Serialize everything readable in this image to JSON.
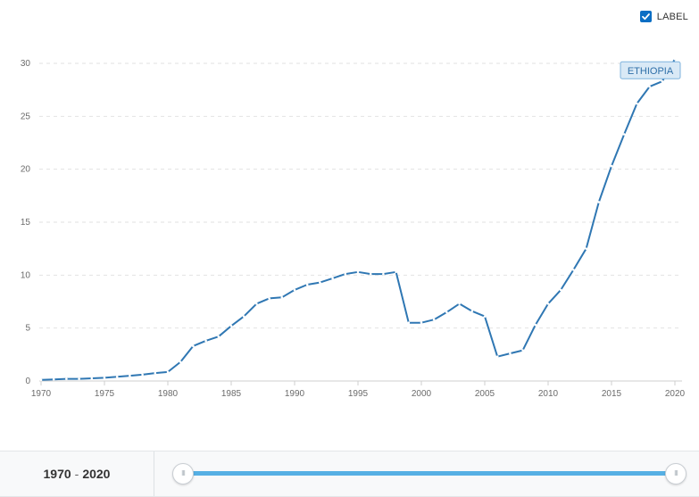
{
  "label_toggle": {
    "text": "LABEL",
    "checked": true
  },
  "range": {
    "start": "1970",
    "separator": "-",
    "end": "2020"
  },
  "slider": {
    "start_fraction": 0.0,
    "end_fraction": 1.0,
    "handle_grip": "III"
  },
  "colors": {
    "line": "#2f77b3",
    "marker": "#ffffff",
    "grid": "#e2e2e2",
    "tooltip_bg": "#d9e9f6",
    "tooltip_border": "#7fb3dd",
    "tooltip_text": "#2f6fa8",
    "slider_fill": "#56b0e4",
    "checkbox": "#0a6ec4"
  },
  "chart_data": {
    "type": "line",
    "title": "",
    "xlabel": "",
    "ylabel": "",
    "xlim": [
      1970,
      2020
    ],
    "ylim": [
      0,
      30
    ],
    "grid": true,
    "x_ticks": [
      "1970",
      "1975",
      "1980",
      "1985",
      "1990",
      "1995",
      "2000",
      "2005",
      "2010",
      "2015",
      "2020"
    ],
    "y_ticks": [
      "0",
      "5",
      "10",
      "15",
      "20",
      "25",
      "30"
    ],
    "series": [
      {
        "name": "ETHIOPIA",
        "x": [
          1970,
          1971,
          1972,
          1973,
          1974,
          1975,
          1976,
          1977,
          1978,
          1979,
          1980,
          1981,
          1982,
          1983,
          1984,
          1985,
          1986,
          1987,
          1988,
          1989,
          1990,
          1991,
          1992,
          1993,
          1994,
          1995,
          1996,
          1997,
          1998,
          1999,
          2000,
          2001,
          2002,
          2003,
          2004,
          2005,
          2006,
          2007,
          2008,
          2009,
          2010,
          2011,
          2012,
          2013,
          2014,
          2015,
          2016,
          2017,
          2018,
          2019,
          2020
        ],
        "y": [
          0.1,
          0.15,
          0.2,
          0.2,
          0.25,
          0.3,
          0.4,
          0.5,
          0.6,
          0.75,
          0.85,
          1.8,
          3.3,
          3.8,
          4.2,
          5.2,
          6.1,
          7.3,
          7.8,
          7.9,
          8.6,
          9.1,
          9.3,
          9.7,
          10.1,
          10.3,
          10.1,
          10.1,
          10.3,
          5.5,
          5.5,
          5.8,
          6.5,
          7.3,
          6.6,
          6.1,
          2.3,
          2.6,
          2.9,
          5.3,
          7.3,
          8.6,
          10.5,
          12.5,
          16.9,
          20.3,
          23.3,
          26.2,
          27.8,
          28.3,
          30.4
        ]
      }
    ],
    "annotations": [
      {
        "text": "ETHIOPIA",
        "series": "ETHIOPIA"
      }
    ]
  }
}
